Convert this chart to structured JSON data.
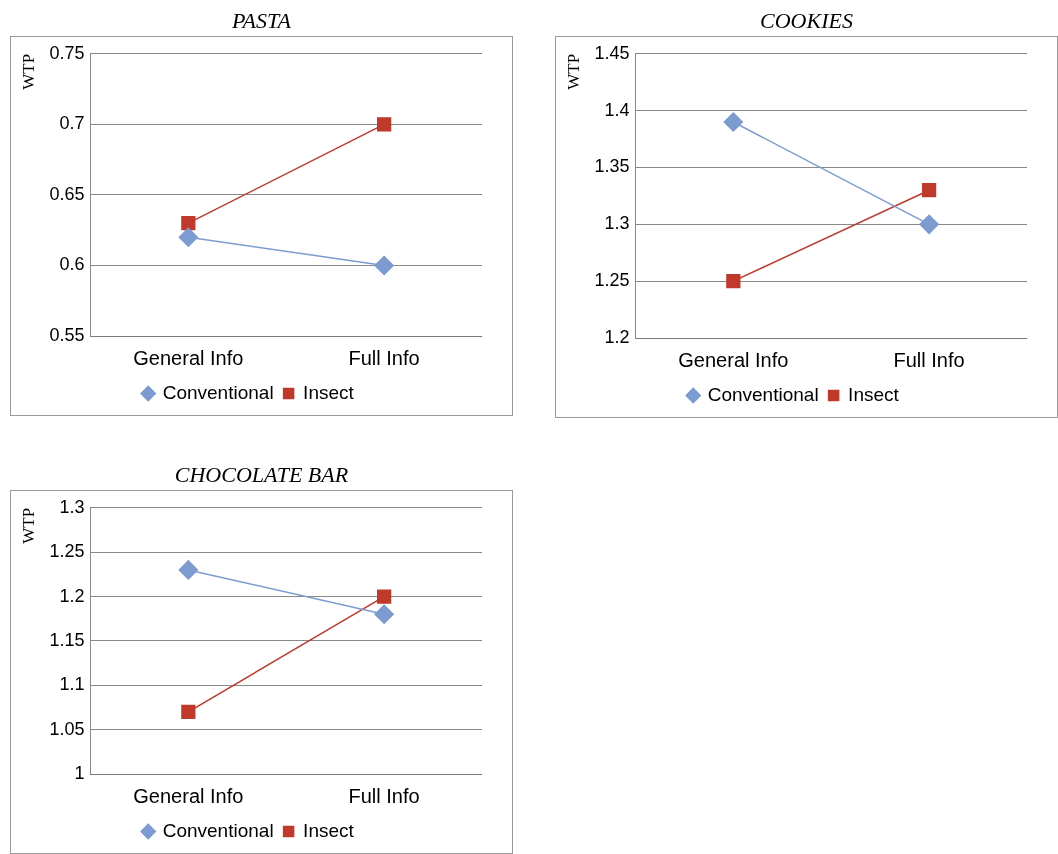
{
  "chart_data": [
    {
      "type": "line",
      "title": "PASTA",
      "ylabel": "WTP",
      "categories": [
        "General Info",
        "Full Info"
      ],
      "ylim": [
        0.55,
        0.75
      ],
      "yticks": [
        0.55,
        0.6,
        0.65,
        0.7,
        0.75
      ],
      "grid": "y",
      "legend": "bottom",
      "series": [
        {
          "name": "Conventional",
          "color": "#7b9bd1",
          "marker": "diamond",
          "values": [
            0.62,
            0.6
          ]
        },
        {
          "name": "Insect",
          "color": "#c0392b",
          "marker": "square",
          "values": [
            0.63,
            0.7
          ]
        }
      ]
    },
    {
      "type": "line",
      "title": "COOKIES",
      "ylabel": "WTP",
      "categories": [
        "General Info",
        "Full Info"
      ],
      "ylim": [
        1.2,
        1.45
      ],
      "yticks": [
        1.2,
        1.25,
        1.3,
        1.35,
        1.4,
        1.45
      ],
      "grid": "y",
      "legend": "bottom",
      "series": [
        {
          "name": "Conventional",
          "color": "#7b9bd1",
          "marker": "diamond",
          "values": [
            1.39,
            1.3
          ]
        },
        {
          "name": "Insect",
          "color": "#c0392b",
          "marker": "square",
          "values": [
            1.25,
            1.33
          ]
        }
      ]
    },
    {
      "type": "line",
      "title": "CHOCOLATE BAR",
      "ylabel": "WTP",
      "categories": [
        "General Info",
        "Full Info"
      ],
      "ylim": [
        1,
        1.3
      ],
      "yticks": [
        1,
        1.05,
        1.1,
        1.15,
        1.2,
        1.25,
        1.3
      ],
      "grid": "y",
      "legend": "bottom",
      "series": [
        {
          "name": "Conventional",
          "color": "#7b9bd1",
          "marker": "diamond",
          "values": [
            1.23,
            1.18
          ]
        },
        {
          "name": "Insect",
          "color": "#c0392b",
          "marker": "square",
          "values": [
            1.07,
            1.2
          ]
        }
      ]
    }
  ]
}
